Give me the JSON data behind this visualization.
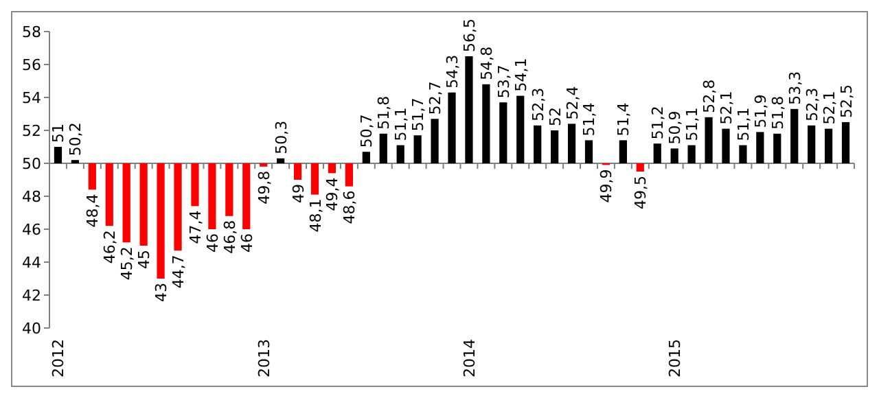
{
  "chart_data": {
    "type": "bar",
    "categories": [
      "2012",
      null,
      null,
      null,
      null,
      null,
      null,
      null,
      null,
      null,
      null,
      null,
      "2013",
      null,
      null,
      null,
      null,
      null,
      null,
      null,
      null,
      null,
      null,
      null,
      "2014",
      null,
      null,
      null,
      null,
      null,
      null,
      null,
      null,
      null,
      null,
      null,
      "2015",
      null,
      null,
      null,
      null,
      null,
      null,
      null,
      null,
      null,
      null
    ],
    "base": [
      50,
      50,
      50,
      50,
      50,
      50,
      50,
      50,
      50,
      50,
      50,
      50,
      50,
      50,
      50,
      50,
      50,
      50,
      50,
      50,
      50,
      50,
      50,
      50,
      50,
      50,
      50,
      50,
      50,
      50,
      50,
      50,
      50,
      50,
      50,
      50,
      50,
      50,
      50,
      50,
      50,
      50,
      50,
      50,
      50,
      50,
      50
    ],
    "values": [
      1,
      0.2,
      -1.6,
      -3.8,
      -4.8,
      -5,
      -7,
      -5.3,
      -2.6,
      -4,
      -3.2,
      -4,
      -0.2,
      0.3,
      -1,
      -1.9,
      -0.6,
      -1.4,
      0.7,
      1.8,
      1.1,
      1.7,
      2.7,
      4.3,
      6.5,
      4.8,
      3.7,
      4.1,
      2.3,
      2,
      2.4,
      1.4,
      -0.1,
      1.4,
      -0.5,
      1.2,
      0.9,
      1.1,
      2.8,
      2.1,
      1.1,
      1.9,
      1.8,
      3.3,
      2.3,
      2.1,
      2.5
    ],
    "value_labels": [
      "51",
      "50,2",
      "48,4",
      "46,2",
      "45,2",
      "45",
      "43",
      "44,7",
      "47,4",
      "46",
      "46,8",
      "46",
      "49,8",
      "50,3",
      "49",
      "48,1",
      "49,4",
      "48,6",
      "50,7",
      "51,8",
      "51,1",
      "51,7",
      "52,7",
      "54,3",
      "56,5",
      "54,8",
      "53,7",
      "54,1",
      "52,3",
      "52",
      "52,4",
      "51,4",
      "49,9",
      "51,4",
      "49,5",
      "51,2",
      "50,9",
      "51,1",
      "52,8",
      "52,1",
      "51,1",
      "51,9",
      "51,8",
      "53,3",
      "52,3",
      "52,1",
      "52,5"
    ],
    "colors": [
      "#000000",
      "#000000",
      "#ff0000",
      "#ff0000",
      "#ff0000",
      "#ff0000",
      "#ff0000",
      "#ff0000",
      "#ff0000",
      "#ff0000",
      "#ff0000",
      "#ff0000",
      "#ff0000",
      "#000000",
      "#ff0000",
      "#ff0000",
      "#ff0000",
      "#ff0000",
      "#000000",
      "#000000",
      "#000000",
      "#000000",
      "#000000",
      "#000000",
      "#000000",
      "#000000",
      "#000000",
      "#000000",
      "#000000",
      "#000000",
      "#000000",
      "#000000",
      "#ff0000",
      "#000000",
      "#ff0000",
      "#000000",
      "#000000",
      "#000000",
      "#000000",
      "#000000",
      "#000000",
      "#000000",
      "#000000",
      "#000000",
      "#000000",
      "#000000",
      "#000000"
    ],
    "ylim": [
      40,
      58
    ],
    "yticks": [
      40,
      42,
      44,
      46,
      48,
      50,
      52,
      54,
      56,
      58
    ]
  }
}
